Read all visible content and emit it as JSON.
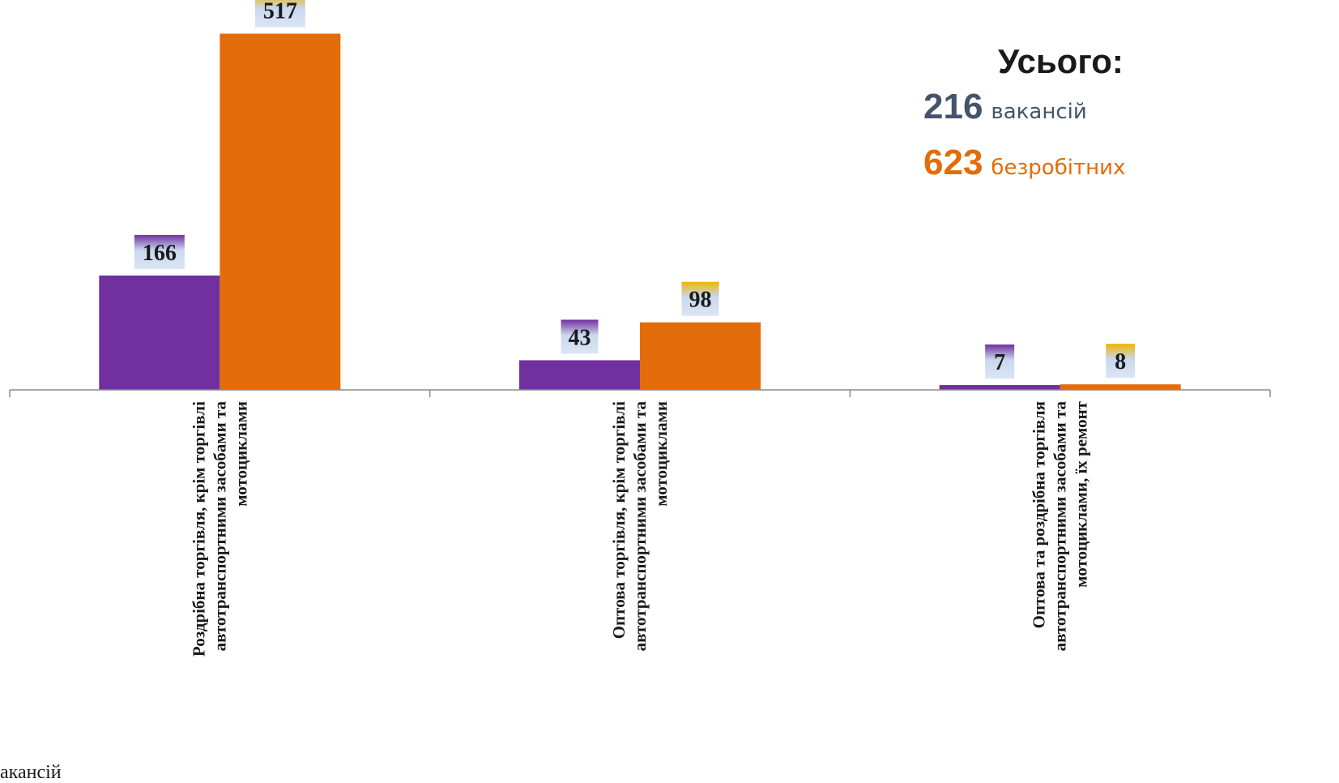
{
  "chart_data": {
    "type": "bar",
    "categories": [
      "Роздрібна торгівля, крім торгівлі автотранспортними засобами та мотоциклами",
      "Оптова торгівля, крім торгівлі автотранспортними засобами та мотоциклами",
      "Оптова та роздрібна торгівля автотранспортними засобами та мотоциклами, їх ремонт"
    ],
    "category_lines": [
      [
        "Роздрібна торгівля, крім торгівлі",
        "автотранспортними засобами та",
        "мотоциклами"
      ],
      [
        "Оптова торгівля, крім торгівлі",
        "автотранспортними засобами та",
        "мотоциклами"
      ],
      [
        "Оптова та роздрібна торгівля",
        "автотранспортними засобами та",
        "мотоциклами, їх ремонт"
      ]
    ],
    "series": [
      {
        "values": [
          166,
          43,
          7
        ],
        "color": "#7030a0"
      },
      {
        "values": [
          517,
          98,
          8
        ],
        "color": "#e36c0a"
      }
    ],
    "ylim": [
      0,
      540
    ],
    "grid": false,
    "data_labels": true
  },
  "totals": {
    "title": "Усього:",
    "rows": [
      {
        "number": "216",
        "label": "вакансій",
        "color": "#44546a"
      },
      {
        "number": "623",
        "label": "безробітних",
        "color": "#e36c0a"
      }
    ]
  },
  "legend_fragment": "акансій"
}
